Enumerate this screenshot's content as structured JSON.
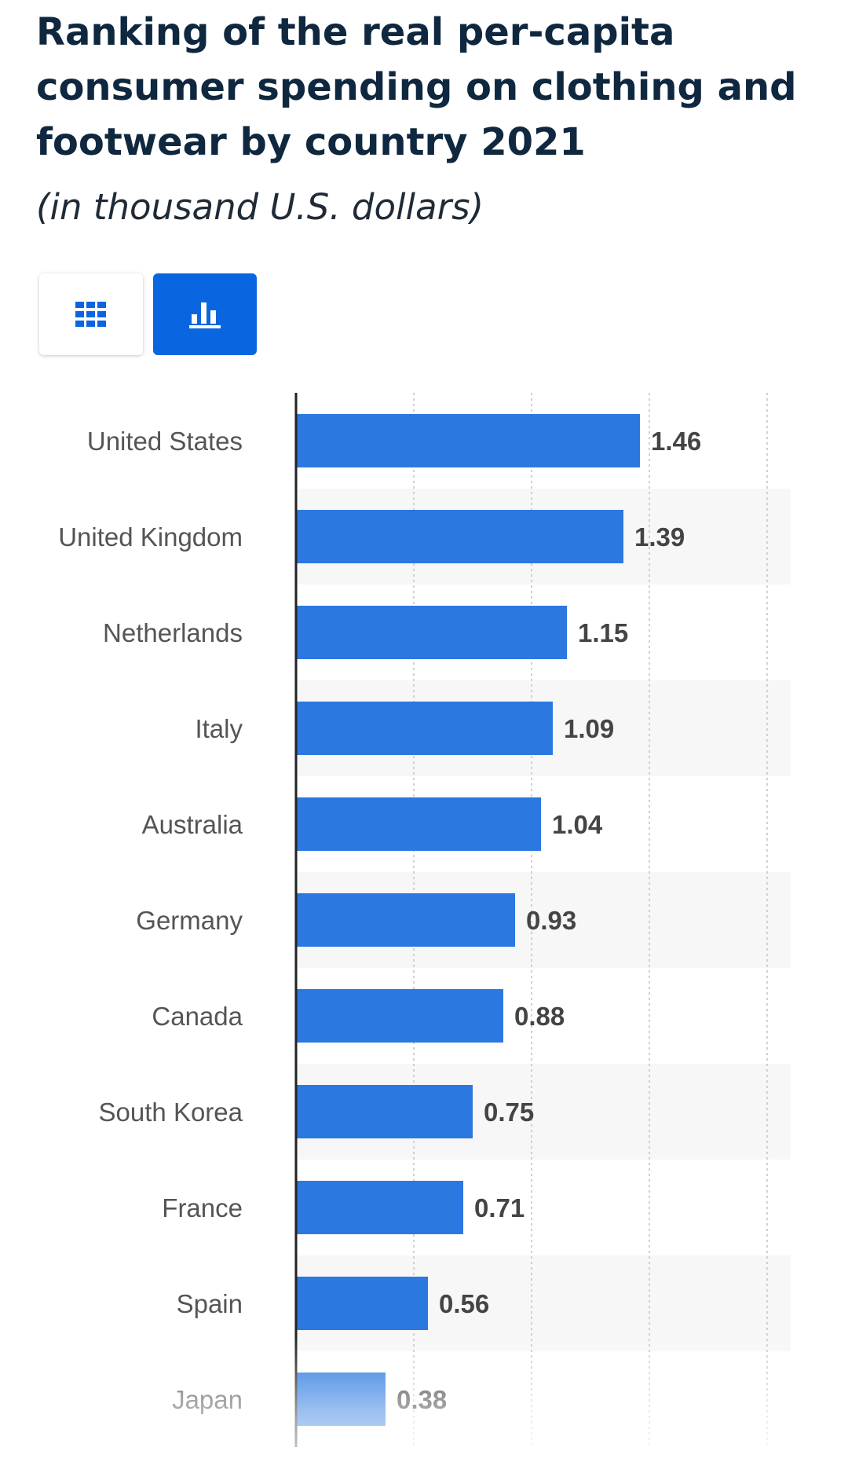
{
  "title": "Ranking of the real per-capita consumer spending on clothing and footwear by country 2021",
  "subtitle": "(in thousand U.S. dollars)",
  "view_toggle": {
    "table_icon": "table-grid-icon",
    "chart_icon": "bar-chart-icon",
    "active": "chart"
  },
  "colors": {
    "bar": "#2b78e0",
    "accent": "#0a66e0",
    "title": "#0f2840",
    "category_label": "#555555",
    "value_label": "#444444",
    "band": "#f7f7f7",
    "grid": "#d0d0d0"
  },
  "chart_data": {
    "type": "bar",
    "orientation": "horizontal",
    "categories": [
      "United States",
      "United Kingdom",
      "Netherlands",
      "Italy",
      "Australia",
      "Germany",
      "Canada",
      "South Korea",
      "France",
      "Spain",
      "Japan"
    ],
    "values": [
      1.46,
      1.39,
      1.15,
      1.09,
      1.04,
      0.93,
      0.88,
      0.75,
      0.71,
      0.56,
      0.38
    ],
    "value_labels": [
      "1.46",
      "1.39",
      "1.15",
      "1.09",
      "1.04",
      "0.93",
      "0.88",
      "0.75",
      "0.71",
      "0.56",
      "0.38"
    ],
    "xlim": [
      0,
      2
    ],
    "grid": true,
    "legend": "none"
  }
}
